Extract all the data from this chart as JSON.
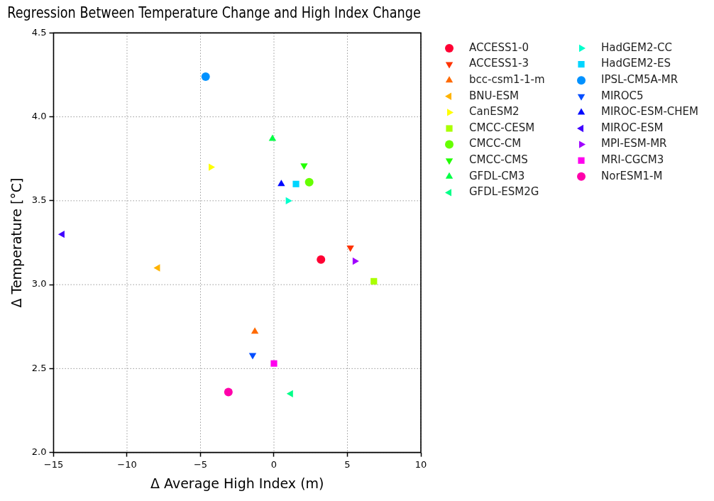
{
  "chart_data": {
    "type": "scatter",
    "title": "Regression Between Temperature Change and High Index Change",
    "xlabel": "Δ Average High Index (m)",
    "ylabel": "Δ Temperature [°C]",
    "xlim": [
      -15,
      10
    ],
    "xticks": [
      {
        "value": -15,
        "label": "−15"
      },
      {
        "value": -10,
        "label": "−10"
      },
      {
        "value": -5,
        "label": "−5"
      },
      0,
      5,
      10
    ],
    "ylim": [
      2.0,
      4.5
    ],
    "yticks": [
      {
        "value": 2.0,
        "label": "2.0"
      },
      2.5,
      {
        "value": 3.0,
        "label": "3.0"
      },
      3.5,
      {
        "value": 4.0,
        "label": "4.0"
      },
      4.5
    ],
    "grid": true,
    "legend": "right",
    "series": [
      {
        "name": "ACCESS1-0",
        "color": "#ff0033",
        "marker": "circle",
        "x": [
          3.2
        ],
        "values": [
          3.15
        ]
      },
      {
        "name": "ACCESS1-3",
        "color": "#ff3300",
        "marker": "triangle_down",
        "x": [
          5.2
        ],
        "values": [
          3.22
        ]
      },
      {
        "name": "bcc-csm1-1-m",
        "color": "#ff6a00",
        "marker": "triangle",
        "x": [
          -1.3
        ],
        "values": [
          2.72
        ]
      },
      {
        "name": "BNU-ESM",
        "color": "#ffb300",
        "marker": "triangle_left",
        "x": [
          -7.9
        ],
        "values": [
          3.1
        ]
      },
      {
        "name": "CanESM2",
        "color": "#ffff00",
        "marker": "triangle_right",
        "x": [
          -4.3
        ],
        "values": [
          3.7
        ]
      },
      {
        "name": "CMCC-CESM",
        "color": "#aaff00",
        "marker": "square",
        "x": [
          6.8
        ],
        "values": [
          3.02
        ]
      },
      {
        "name": "CMCC-CM",
        "color": "#66ff00",
        "marker": "circle",
        "x": [
          2.4
        ],
        "values": [
          3.61
        ]
      },
      {
        "name": "CMCC-CMS",
        "color": "#22ff00",
        "marker": "triangle_down",
        "x": [
          2.05
        ],
        "values": [
          3.71
        ]
      },
      {
        "name": "GFDL-CM3",
        "color": "#00ff44",
        "marker": "triangle",
        "x": [
          -0.1
        ],
        "values": [
          3.87
        ]
      },
      {
        "name": "GFDL-ESM2G",
        "color": "#00ff88",
        "marker": "triangle_left",
        "x": [
          1.15
        ],
        "values": [
          2.35
        ]
      },
      {
        "name": "HadGEM2-CC",
        "color": "#00ffcc",
        "marker": "triangle_right",
        "x": [
          0.95
        ],
        "values": [
          3.5
        ]
      },
      {
        "name": "HadGEM2-ES",
        "color": "#00d5ff",
        "marker": "square",
        "x": [
          1.5
        ],
        "values": [
          3.6
        ]
      },
      {
        "name": "IPSL-CM5A-MR",
        "color": "#0091ff",
        "marker": "circle",
        "x": [
          -4.65
        ],
        "values": [
          4.24
        ]
      },
      {
        "name": "MIROC5",
        "color": "#004dff",
        "marker": "triangle_down",
        "x": [
          -1.45
        ],
        "values": [
          2.58
        ]
      },
      {
        "name": "MIROC-ESM-CHEM",
        "color": "#0008ff",
        "marker": "triangle",
        "x": [
          0.5
        ],
        "values": [
          3.6
        ]
      },
      {
        "name": "MIROC-ESM",
        "color": "#4000ff",
        "marker": "triangle_left",
        "x": [
          -14.4
        ],
        "values": [
          3.3
        ]
      },
      {
        "name": "MPI-ESM-MR",
        "color": "#a000ff",
        "marker": "triangle_right",
        "x": [
          5.5
        ],
        "values": [
          3.14
        ]
      },
      {
        "name": "MRI-CGCM3",
        "color": "#ff00ee",
        "marker": "square",
        "x": [
          0.0
        ],
        "values": [
          2.53
        ]
      },
      {
        "name": "NorESM1-M",
        "color": "#ff00aa",
        "marker": "circle",
        "x": [
          -3.1
        ],
        "values": [
          2.36
        ]
      }
    ]
  }
}
